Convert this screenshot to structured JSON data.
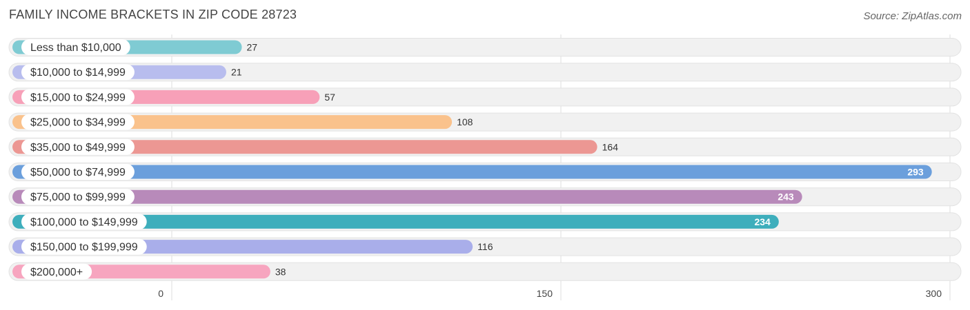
{
  "header": {
    "title": "FAMILY INCOME BRACKETS IN ZIP CODE 28723",
    "source": "Source: ZipAtlas.com"
  },
  "chart_data": {
    "type": "bar",
    "orientation": "horizontal",
    "title": "FAMILY INCOME BRACKETS IN ZIP CODE 28723",
    "xlabel": "",
    "ylabel": "",
    "xlim": [
      0,
      300
    ],
    "xticks": [
      0,
      150,
      300
    ],
    "grid": true,
    "categories": [
      "Less than $10,000",
      "$10,000 to $14,999",
      "$15,000 to $24,999",
      "$25,000 to $34,999",
      "$35,000 to $49,999",
      "$50,000 to $74,999",
      "$75,000 to $99,999",
      "$100,000 to $149,999",
      "$150,000 to $199,999",
      "$200,000+"
    ],
    "values": [
      27,
      21,
      57,
      108,
      164,
      293,
      243,
      234,
      116,
      38
    ],
    "colors": [
      "#7fcbd3",
      "#b8bdee",
      "#f7a0b8",
      "#fac28c",
      "#ec9793",
      "#6b9fdc",
      "#b88aba",
      "#3eaebc",
      "#a9aeea",
      "#f7a5bf"
    ]
  }
}
